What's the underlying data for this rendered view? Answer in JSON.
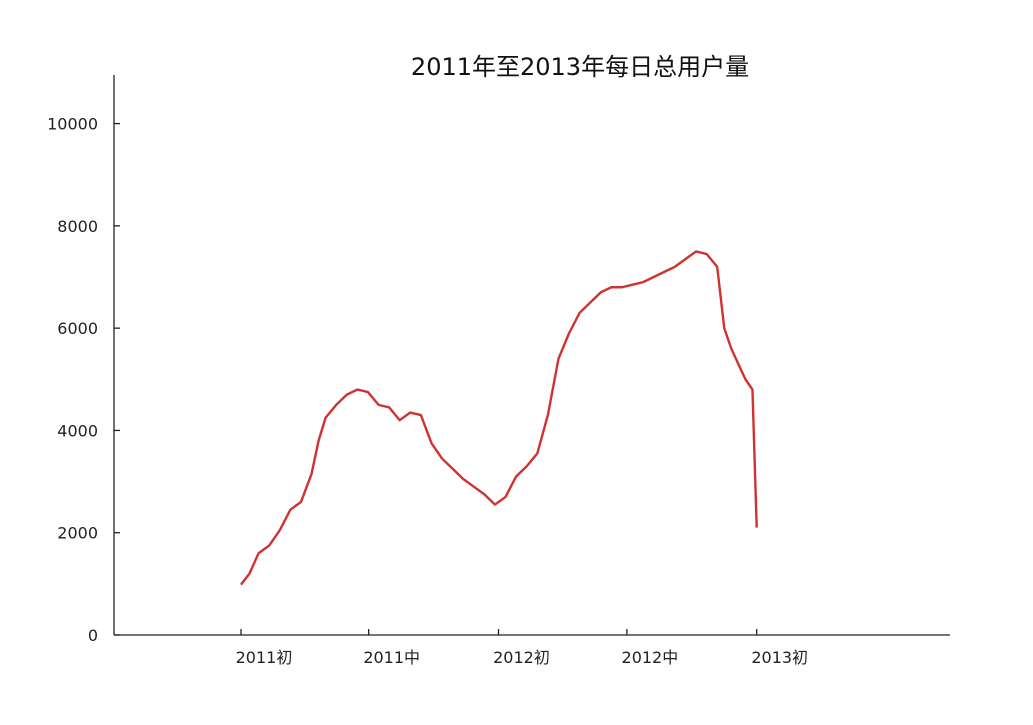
{
  "chart_data": {
    "type": "line",
    "title": "2011年至2013年每日总用户量",
    "xlabel": "",
    "ylabel": "",
    "xlim": [
      -180,
      1005
    ],
    "ylim": [
      0,
      10950
    ],
    "x_ticks": [
      {
        "value": 0,
        "label": "2011初"
      },
      {
        "value": 181,
        "label": "2011中"
      },
      {
        "value": 365,
        "label": "2012初"
      },
      {
        "value": 547,
        "label": "2012中"
      },
      {
        "value": 731,
        "label": "2013初"
      }
    ],
    "y_ticks": [
      0,
      2000,
      4000,
      6000,
      8000,
      10000
    ],
    "x_unit": "days since 2011-01-01",
    "series": [
      {
        "name": "",
        "color": "#d03232",
        "points": [
          [
            0,
            985
          ],
          [
            12,
            1200
          ],
          [
            25,
            1600
          ],
          [
            40,
            1750
          ],
          [
            55,
            2050
          ],
          [
            70,
            2450
          ],
          [
            85,
            2600
          ],
          [
            100,
            3150
          ],
          [
            110,
            3800
          ],
          [
            120,
            4250
          ],
          [
            135,
            4500
          ],
          [
            150,
            4700
          ],
          [
            165,
            4800
          ],
          [
            180,
            4750
          ],
          [
            195,
            4500
          ],
          [
            210,
            4450
          ],
          [
            225,
            4200
          ],
          [
            240,
            4350
          ],
          [
            255,
            4300
          ],
          [
            270,
            3750
          ],
          [
            285,
            3450
          ],
          [
            300,
            3250
          ],
          [
            315,
            3050
          ],
          [
            330,
            2900
          ],
          [
            345,
            2750
          ],
          [
            360,
            2550
          ],
          [
            375,
            2700
          ],
          [
            390,
            3100
          ],
          [
            405,
            3300
          ],
          [
            420,
            3550
          ],
          [
            435,
            4300
          ],
          [
            450,
            5400
          ],
          [
            465,
            5900
          ],
          [
            480,
            6300
          ],
          [
            495,
            6500
          ],
          [
            510,
            6700
          ],
          [
            525,
            6800
          ],
          [
            540,
            6800
          ],
          [
            555,
            6850
          ],
          [
            570,
            6900
          ],
          [
            585,
            7000
          ],
          [
            600,
            7100
          ],
          [
            615,
            7200
          ],
          [
            630,
            7350
          ],
          [
            645,
            7500
          ],
          [
            660,
            7450
          ],
          [
            675,
            7200
          ],
          [
            685,
            6000
          ],
          [
            695,
            5600
          ],
          [
            705,
            5300
          ],
          [
            715,
            5000
          ],
          [
            725,
            4800
          ],
          [
            731,
            2100
          ]
        ]
      }
    ]
  }
}
